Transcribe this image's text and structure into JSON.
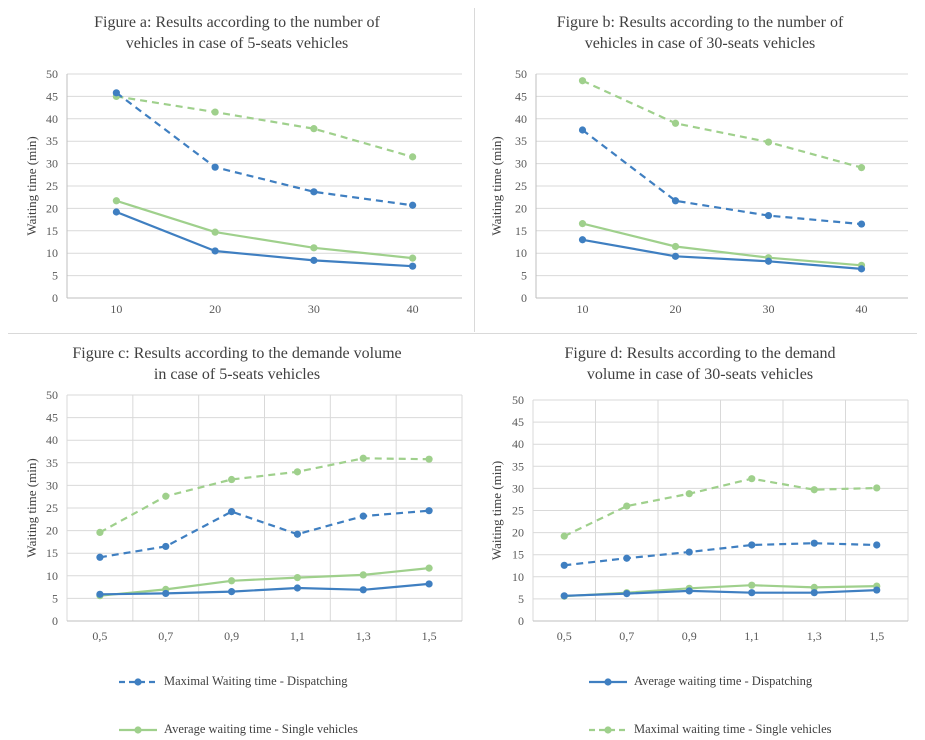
{
  "colors": {
    "dispatch": "#3f7fc1",
    "single": "#9fd08c",
    "grid": "#d9d9d9",
    "axis": "#bfbfbf"
  },
  "y_axis_label": "Waiting time (min)",
  "legend": [
    {
      "label": "Maximal Waiting time - Dispatching",
      "color": "#3f7fc1",
      "dash": true
    },
    {
      "label": "Average waiting time - Dispatching",
      "color": "#3f7fc1",
      "dash": false
    },
    {
      "label": "Average waiting time - Single vehicles",
      "color": "#9fd08c",
      "dash": false
    },
    {
      "label": "Maximal waiting time - Single vehicles",
      "color": "#9fd08c",
      "dash": true
    }
  ],
  "chart_data": [
    {
      "id": "a",
      "type": "line",
      "title": "Figure a: Results according to the number of\nvehicles in case of 5-seats vehicles",
      "ylabel": "Waiting time (min)",
      "xlabel": "",
      "categories": [
        "10",
        "20",
        "30",
        "40"
      ],
      "ylim": [
        0,
        50
      ],
      "yticks": [
        "0",
        "5",
        "10",
        "15",
        "20",
        "25",
        "30",
        "35",
        "40",
        "45",
        "50"
      ],
      "grid": "horizontal",
      "series": [
        {
          "name": "Maximal waiting time - Single vehicles",
          "color": "#9fd08c",
          "dash": true,
          "values": [
            45.0,
            41.5,
            37.8,
            31.5
          ]
        },
        {
          "name": "Maximal Waiting time - Dispatching",
          "color": "#3f7fc1",
          "dash": true,
          "values": [
            45.8,
            29.2,
            23.7,
            20.7
          ]
        },
        {
          "name": "Average waiting time - Single vehicles",
          "color": "#9fd08c",
          "dash": false,
          "values": [
            21.7,
            14.7,
            11.2,
            8.9
          ]
        },
        {
          "name": "Average waiting time - Dispatching",
          "color": "#3f7fc1",
          "dash": false,
          "values": [
            19.2,
            10.5,
            8.4,
            7.1
          ]
        }
      ]
    },
    {
      "id": "b",
      "type": "line",
      "title": "Figure b: Results according to the number of\nvehicles in case of 30-seats vehicles",
      "ylabel": "Waiting time (min)",
      "xlabel": "",
      "categories": [
        "10",
        "20",
        "30",
        "40"
      ],
      "ylim": [
        0,
        50
      ],
      "yticks": [
        "0",
        "5",
        "10",
        "15",
        "20",
        "25",
        "30",
        "35",
        "40",
        "45",
        "50"
      ],
      "grid": "horizontal",
      "series": [
        {
          "name": "Maximal waiting time - Single vehicles",
          "color": "#9fd08c",
          "dash": true,
          "values": [
            48.5,
            39.0,
            34.8,
            29.1
          ]
        },
        {
          "name": "Maximal Waiting time - Dispatching",
          "color": "#3f7fc1",
          "dash": true,
          "values": [
            37.5,
            21.7,
            18.4,
            16.5
          ]
        },
        {
          "name": "Average waiting time - Single vehicles",
          "color": "#9fd08c",
          "dash": false,
          "values": [
            16.6,
            11.5,
            9.0,
            7.3
          ]
        },
        {
          "name": "Average waiting time - Dispatching",
          "color": "#3f7fc1",
          "dash": false,
          "values": [
            13.0,
            9.3,
            8.2,
            6.5
          ]
        }
      ]
    },
    {
      "id": "c",
      "type": "line",
      "title": "Figure c: Results according to the demande volume\nin case of 5-seats vehicles",
      "ylabel": "Waiting time (min)",
      "xlabel": "",
      "categories": [
        "0,5",
        "0,7",
        "0,9",
        "1,1",
        "1,3",
        "1,5"
      ],
      "ylim": [
        0,
        50
      ],
      "yticks": [
        "0",
        "5",
        "10",
        "15",
        "20",
        "25",
        "30",
        "35",
        "40",
        "45",
        "50"
      ],
      "grid": "both",
      "series": [
        {
          "name": "Maximal waiting time - Single vehicles",
          "color": "#9fd08c",
          "dash": true,
          "values": [
            19.6,
            27.6,
            31.3,
            33.0,
            36.0,
            35.8
          ]
        },
        {
          "name": "Maximal Waiting time - Dispatching",
          "color": "#3f7fc1",
          "dash": true,
          "values": [
            14.1,
            16.5,
            24.2,
            19.2,
            23.2,
            24.4
          ]
        },
        {
          "name": "Average waiting time - Single vehicles",
          "color": "#9fd08c",
          "dash": false,
          "values": [
            5.6,
            7.0,
            8.9,
            9.6,
            10.2,
            11.7
          ]
        },
        {
          "name": "Average waiting time - Dispatching",
          "color": "#3f7fc1",
          "dash": false,
          "values": [
            5.9,
            6.1,
            6.5,
            7.3,
            6.9,
            8.2
          ]
        }
      ]
    },
    {
      "id": "d",
      "type": "line",
      "title": "Figure d: Results according to the demand\nvolume in case of 30-seats vehicles",
      "ylabel": "Waiting time (min)",
      "xlabel": "",
      "categories": [
        "0,5",
        "0,7",
        "0,9",
        "1,1",
        "1,3",
        "1,5"
      ],
      "ylim": [
        0,
        50
      ],
      "yticks": [
        "0",
        "5",
        "10",
        "15",
        "20",
        "25",
        "30",
        "35",
        "40",
        "45",
        "50"
      ],
      "grid": "both",
      "series": [
        {
          "name": "Maximal waiting time - Single vehicles",
          "color": "#9fd08c",
          "dash": true,
          "values": [
            19.2,
            26.0,
            28.8,
            32.2,
            29.7,
            30.1
          ]
        },
        {
          "name": "Maximal Waiting time - Dispatching",
          "color": "#3f7fc1",
          "dash": true,
          "values": [
            12.6,
            14.2,
            15.6,
            17.2,
            17.6,
            17.2
          ]
        },
        {
          "name": "Average waiting time - Single vehicles",
          "color": "#9fd08c",
          "dash": false,
          "values": [
            5.6,
            6.4,
            7.4,
            8.1,
            7.6,
            7.9
          ]
        },
        {
          "name": "Average waiting time - Dispatching",
          "color": "#3f7fc1",
          "dash": false,
          "values": [
            5.7,
            6.2,
            6.8,
            6.4,
            6.4,
            7.0
          ]
        }
      ]
    }
  ]
}
